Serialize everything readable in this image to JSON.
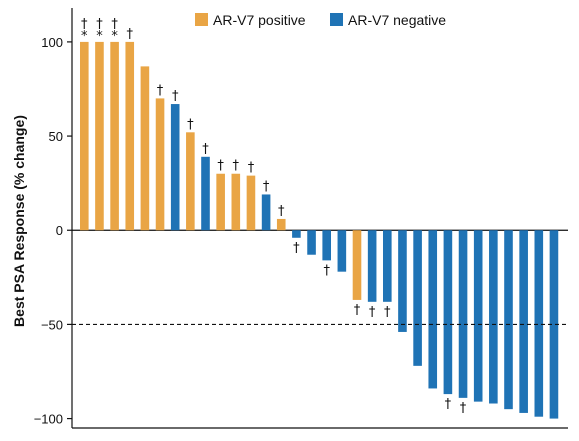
{
  "chart_data": {
    "type": "bar",
    "ylabel": "Best PSA Response (% change)",
    "ylim": [
      -105,
      118
    ],
    "yticks": [
      100,
      50,
      0,
      -50,
      -100
    ],
    "ytick_labels": [
      "100",
      "50",
      "0",
      "−50",
      "−100"
    ],
    "reference_line": -50,
    "grid": false,
    "legend_position": "top",
    "series": [
      {
        "name": "AR-V7 positive",
        "color": "#E9A545"
      },
      {
        "name": "AR-V7 negative",
        "color": "#1F73B5"
      }
    ],
    "markers": {
      "dagger": "†",
      "asterisk": "*"
    },
    "bars": [
      {
        "value": 100,
        "series": 0,
        "dagger": true,
        "asterisk": true
      },
      {
        "value": 100,
        "series": 0,
        "dagger": true,
        "asterisk": true
      },
      {
        "value": 100,
        "series": 0,
        "dagger": true,
        "asterisk": true
      },
      {
        "value": 100,
        "series": 0,
        "dagger": true,
        "asterisk": false
      },
      {
        "value": 87,
        "series": 0,
        "dagger": false,
        "asterisk": false
      },
      {
        "value": 70,
        "series": 0,
        "dagger": true,
        "asterisk": false
      },
      {
        "value": 67,
        "series": 1,
        "dagger": true,
        "asterisk": false
      },
      {
        "value": 52,
        "series": 0,
        "dagger": true,
        "asterisk": false
      },
      {
        "value": 39,
        "series": 1,
        "dagger": true,
        "asterisk": false
      },
      {
        "value": 30,
        "series": 0,
        "dagger": true,
        "asterisk": false
      },
      {
        "value": 30,
        "series": 0,
        "dagger": true,
        "asterisk": false
      },
      {
        "value": 29,
        "series": 0,
        "dagger": true,
        "asterisk": false
      },
      {
        "value": 19,
        "series": 1,
        "dagger": true,
        "asterisk": false
      },
      {
        "value": 6,
        "series": 0,
        "dagger": true,
        "asterisk": false
      },
      {
        "value": -4,
        "series": 1,
        "dagger": true,
        "asterisk": false
      },
      {
        "value": -13,
        "series": 1,
        "dagger": false,
        "asterisk": false
      },
      {
        "value": -16,
        "series": 1,
        "dagger": true,
        "asterisk": false
      },
      {
        "value": -22,
        "series": 1,
        "dagger": false,
        "asterisk": false
      },
      {
        "value": -37,
        "series": 0,
        "dagger": true,
        "asterisk": false
      },
      {
        "value": -38,
        "series": 1,
        "dagger": true,
        "asterisk": false
      },
      {
        "value": -38,
        "series": 1,
        "dagger": true,
        "asterisk": false
      },
      {
        "value": -54,
        "series": 1,
        "dagger": false,
        "asterisk": false
      },
      {
        "value": -72,
        "series": 1,
        "dagger": false,
        "asterisk": false
      },
      {
        "value": -84,
        "series": 1,
        "dagger": false,
        "asterisk": false
      },
      {
        "value": -87,
        "series": 1,
        "dagger": true,
        "asterisk": false
      },
      {
        "value": -89,
        "series": 1,
        "dagger": true,
        "asterisk": false
      },
      {
        "value": -91,
        "series": 1,
        "dagger": false,
        "asterisk": false
      },
      {
        "value": -92,
        "series": 1,
        "dagger": false,
        "asterisk": false
      },
      {
        "value": -95,
        "series": 1,
        "dagger": false,
        "asterisk": false
      },
      {
        "value": -97,
        "series": 1,
        "dagger": false,
        "asterisk": false
      },
      {
        "value": -99,
        "series": 1,
        "dagger": false,
        "asterisk": false
      },
      {
        "value": -100,
        "series": 1,
        "dagger": false,
        "asterisk": false
      }
    ]
  }
}
